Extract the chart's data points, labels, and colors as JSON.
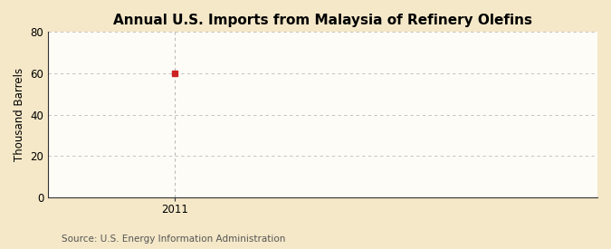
{
  "title": "Annual U.S. Imports from Malaysia of Refinery Olefins",
  "ylabel": "Thousand Barrels",
  "source": "Source: U.S. Energy Information Administration",
  "x_data": [
    2011
  ],
  "y_data": [
    60
  ],
  "xlim": [
    2010.4,
    2013.0
  ],
  "ylim": [
    0,
    80
  ],
  "yticks": [
    0,
    20,
    40,
    60,
    80
  ],
  "xticks": [
    2011
  ],
  "outer_bg_color": "#f5e8c8",
  "plot_bg_color": "#fdfcf7",
  "grid_color": "#bbbbbb",
  "vline_color": "#aaaaaa",
  "marker_color": "#cc2222",
  "spine_color": "#333333",
  "title_fontsize": 11,
  "label_fontsize": 8.5,
  "source_fontsize": 7.5,
  "tick_fontsize": 8.5,
  "title_fontweight": "bold"
}
